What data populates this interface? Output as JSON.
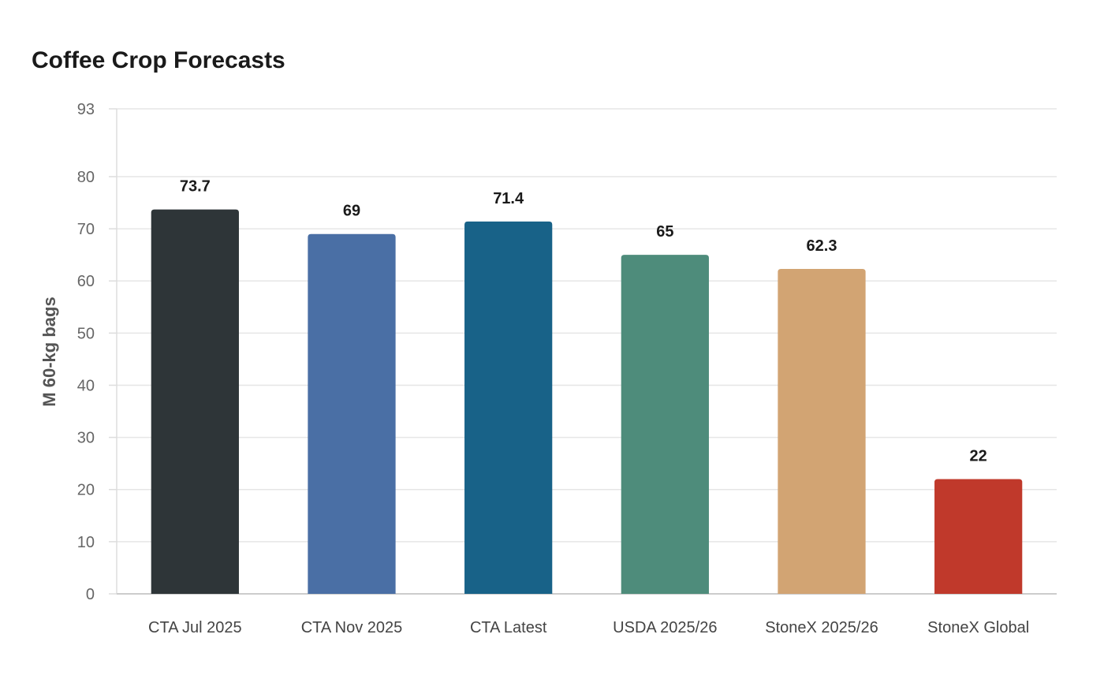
{
  "chart_data": {
    "type": "bar",
    "title": "Coffee Crop Forecasts",
    "xlabel": "",
    "ylabel": "M 60-kg bags",
    "ylim": [
      0,
      93
    ],
    "yticks": [
      0,
      10,
      20,
      30,
      40,
      50,
      60,
      70,
      80,
      93
    ],
    "grid": true,
    "categories": [
      "CTA Jul 2025",
      "CTA Nov 2025",
      "CTA Latest",
      "USDA 2025/26",
      "StoneX 2025/26",
      "StoneX Global"
    ],
    "values": [
      73.7,
      69,
      71.4,
      65,
      62.3,
      22
    ],
    "value_labels": [
      "73.7",
      "69",
      "71.4",
      "65",
      "62.3",
      "22"
    ],
    "colors": [
      "#2e3538",
      "#4a6fa5",
      "#186288",
      "#4e8c7b",
      "#d2a473",
      "#c0392b"
    ]
  }
}
